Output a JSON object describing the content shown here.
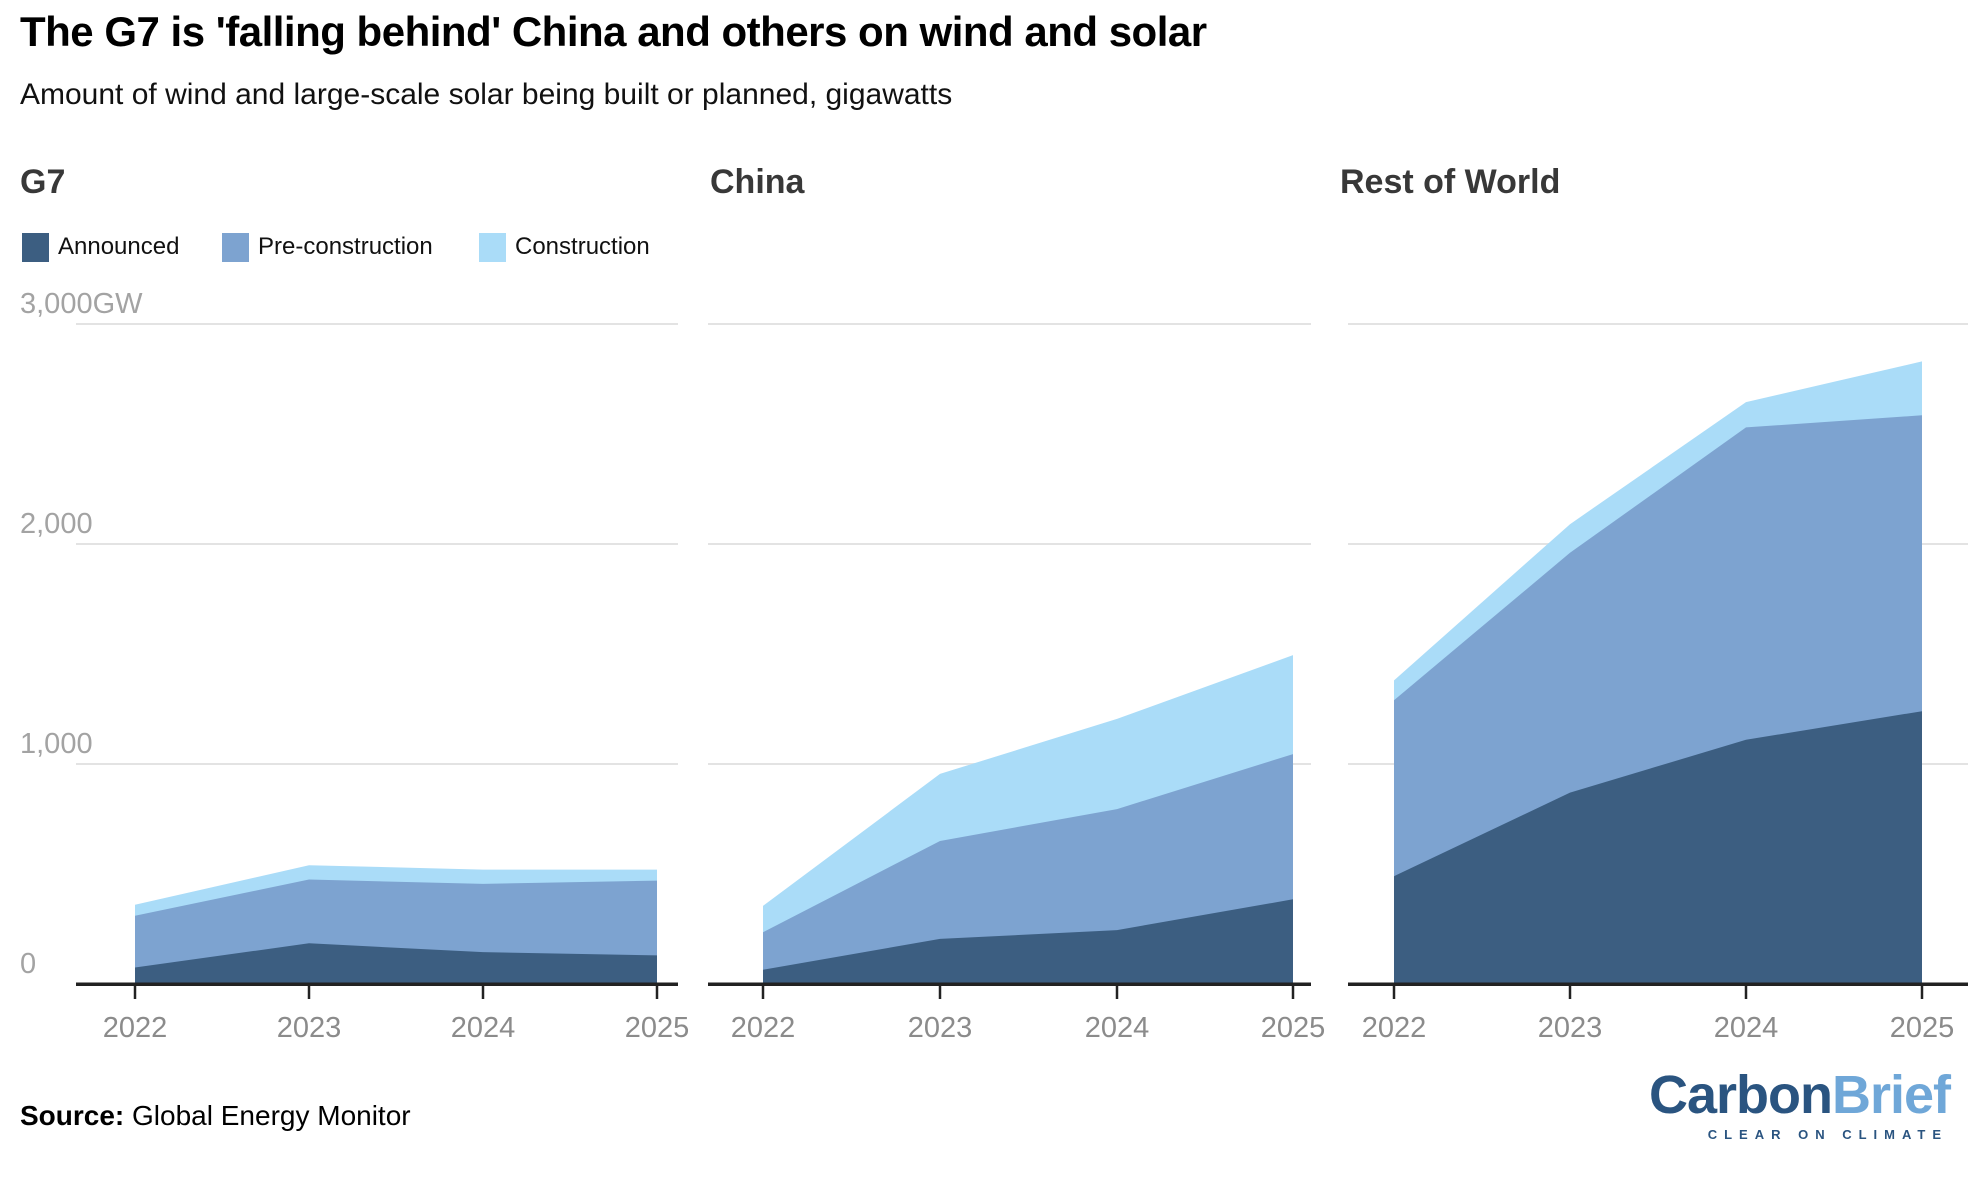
{
  "header": {
    "title": "The G7 is 'falling behind' China and others on wind and solar",
    "subtitle": "Amount of wind and large-scale solar being built or planned, gigawatts"
  },
  "legend": {
    "items": [
      {
        "label": "Announced",
        "color": "#3c5e81"
      },
      {
        "label": "Pre-construction",
        "color": "#7da3d0"
      },
      {
        "label": "Construction",
        "color": "#aadcf8"
      }
    ]
  },
  "y_axis": {
    "labels": [
      "3,000GW",
      "2,000",
      "1,000",
      "0"
    ],
    "values": [
      3000,
      2000,
      1000,
      0
    ]
  },
  "chart_data": [
    {
      "type": "area",
      "stacked": true,
      "title": "G7",
      "categories": [
        "2022",
        "2023",
        "2024",
        "2025"
      ],
      "series": [
        {
          "name": "Announced",
          "color": "#3c5e81",
          "values": [
            75,
            185,
            145,
            130
          ]
        },
        {
          "name": "Pre-construction",
          "color": "#7da3d0",
          "values": [
            235,
            290,
            310,
            340
          ]
        },
        {
          "name": "Construction",
          "color": "#aadcf8",
          "values": [
            50,
            65,
            65,
            50
          ]
        }
      ],
      "totals": [
        360,
        540,
        520,
        520
      ],
      "ylabel": "gigawatts",
      "ylim": [
        0,
        3100
      ],
      "grid": "horizontal",
      "legend_position": "top-left"
    },
    {
      "type": "area",
      "stacked": true,
      "title": "China",
      "categories": [
        "2022",
        "2023",
        "2024",
        "2025"
      ],
      "series": [
        {
          "name": "Announced",
          "color": "#3c5e81",
          "values": [
            65,
            205,
            245,
            385
          ]
        },
        {
          "name": "Pre-construction",
          "color": "#7da3d0",
          "values": [
            170,
            445,
            550,
            660
          ]
        },
        {
          "name": "Construction",
          "color": "#aadcf8",
          "values": [
            120,
            305,
            410,
            450
          ]
        }
      ],
      "totals": [
        355,
        955,
        1205,
        1495
      ],
      "ylabel": "gigawatts",
      "ylim": [
        0,
        3100
      ],
      "grid": "horizontal",
      "legend_position": "none"
    },
    {
      "type": "area",
      "stacked": true,
      "title": "Rest of World",
      "categories": [
        "2022",
        "2023",
        "2024",
        "2025"
      ],
      "series": [
        {
          "name": "Announced",
          "color": "#3c5e81",
          "values": [
            490,
            870,
            1110,
            1240
          ]
        },
        {
          "name": "Pre-construction",
          "color": "#7da3d0",
          "values": [
            800,
            1090,
            1420,
            1345
          ]
        },
        {
          "name": "Construction",
          "color": "#aadcf8",
          "values": [
            90,
            130,
            115,
            245
          ]
        }
      ],
      "totals": [
        1380,
        2090,
        2645,
        2830
      ],
      "ylabel": "gigawatts",
      "ylim": [
        0,
        3100
      ],
      "grid": "horizontal",
      "legend_position": "none"
    }
  ],
  "footer": {
    "source_label": "Source:",
    "source_value": " Global Energy Monitor"
  },
  "logo": {
    "part1": "Carbon",
    "part2": "Brief",
    "tagline": "CLEAR ON CLIMATE",
    "color_dark": "#2a5480",
    "color_light": "#6fa7d8"
  }
}
